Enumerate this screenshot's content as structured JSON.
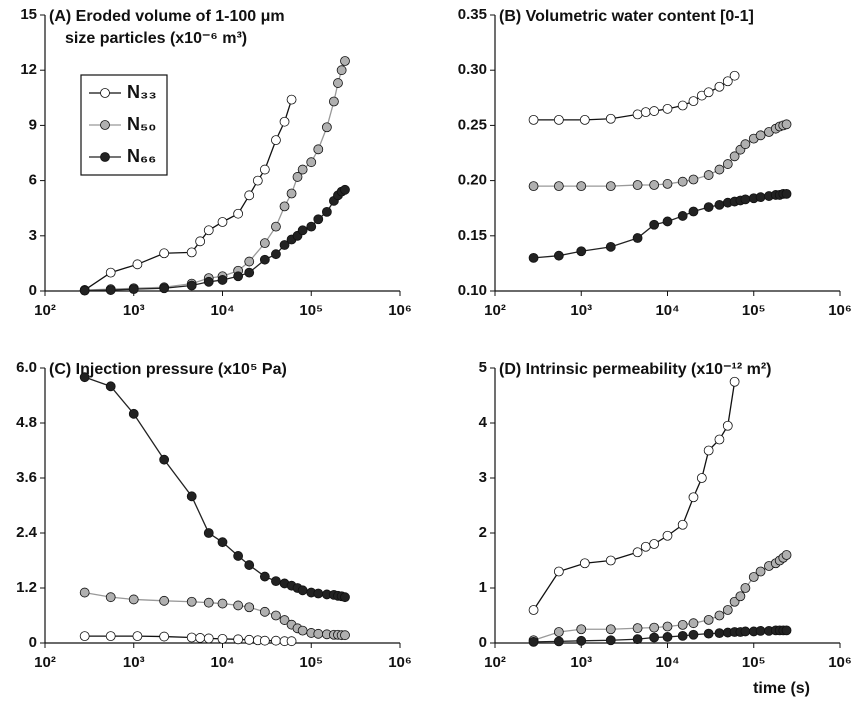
{
  "chart_data": [
    {
      "type": "line",
      "title": [
        "(A) Eroded volume of 1-100 μm",
        "size particles (x10⁻⁶ m³)"
      ],
      "log_x": true,
      "legend": "upper left",
      "xlim": [
        100,
        1000000
      ],
      "xticks": [
        {
          "value": 100,
          "label": "10²"
        },
        {
          "value": 1000,
          "label": "10³"
        },
        {
          "value": 10000,
          "label": "10⁴"
        },
        {
          "value": 100000,
          "label": "10⁵"
        },
        {
          "value": 1000000,
          "label": "10⁶"
        }
      ],
      "ylim": [
        0,
        15
      ],
      "yticks": [
        0,
        3,
        6,
        9,
        12,
        15
      ],
      "series": [
        {
          "name": "N₃₃",
          "color": "#ffffff",
          "line_color": "#111111",
          "x": [
            280,
            550,
            1100,
            2200,
            4500,
            5600,
            7000,
            10000,
            15000,
            20000,
            25000,
            30000,
            40000,
            50000,
            60000
          ],
          "values": [
            0.05,
            1.0,
            1.45,
            2.05,
            2.1,
            2.7,
            3.3,
            3.75,
            4.2,
            5.2,
            6.0,
            6.6,
            8.2,
            9.2,
            10.4
          ]
        },
        {
          "name": "N₅₀",
          "color": "#b0b0b0",
          "line_color": "#999999",
          "x": [
            280,
            550,
            1000,
            2200,
            4500,
            7000,
            10000,
            15000,
            20000,
            30000,
            40000,
            50000,
            60000,
            70000,
            80000,
            100000,
            120000,
            150000,
            180000,
            200000,
            220000,
            240000
          ],
          "values": [
            0.05,
            0.1,
            0.15,
            0.2,
            0.4,
            0.7,
            0.8,
            1.1,
            1.6,
            2.6,
            3.5,
            4.6,
            5.3,
            6.2,
            6.6,
            7.0,
            7.7,
            8.9,
            10.3,
            11.3,
            12.0,
            12.5
          ]
        },
        {
          "name": "N₆₆",
          "color": "#222222",
          "line_color": "#222222",
          "x": [
            280,
            550,
            1000,
            2200,
            4500,
            7000,
            10000,
            15000,
            20000,
            30000,
            40000,
            50000,
            60000,
            70000,
            80000,
            100000,
            120000,
            150000,
            180000,
            200000,
            220000,
            240000
          ],
          "values": [
            0.02,
            0.05,
            0.1,
            0.15,
            0.3,
            0.5,
            0.6,
            0.8,
            1.0,
            1.7,
            2.0,
            2.5,
            2.8,
            3.0,
            3.3,
            3.5,
            3.9,
            4.3,
            4.9,
            5.2,
            5.4,
            5.5
          ]
        }
      ]
    },
    {
      "type": "line",
      "title": [
        "(B) Volumetric water content [0-1]"
      ],
      "log_x": true,
      "xlim": [
        100,
        1000000
      ],
      "xticks": [
        {
          "value": 100,
          "label": "10²"
        },
        {
          "value": 1000,
          "label": "10³"
        },
        {
          "value": 10000,
          "label": "10⁴"
        },
        {
          "value": 100000,
          "label": "10⁵"
        },
        {
          "value": 1000000,
          "label": "10⁶"
        }
      ],
      "ylim": [
        0.1,
        0.35
      ],
      "yticks": [
        {
          "value": 0.1,
          "label": "0.10"
        },
        0.15,
        {
          "value": 0.2,
          "label": "0.20"
        },
        0.25,
        {
          "value": 0.3,
          "label": "0.30"
        },
        0.35
      ],
      "series": [
        {
          "name": "N₃₃",
          "color": "#ffffff",
          "line_color": "#111111",
          "x": [
            280,
            550,
            1100,
            2200,
            4500,
            5600,
            7000,
            10000,
            15000,
            20000,
            25000,
            30000,
            40000,
            50000,
            60000
          ],
          "values": [
            0.255,
            0.255,
            0.255,
            0.256,
            0.26,
            0.262,
            0.263,
            0.265,
            0.268,
            0.272,
            0.277,
            0.28,
            0.285,
            0.29,
            0.295
          ]
        },
        {
          "name": "N₅₀",
          "color": "#b0b0b0",
          "line_color": "#999999",
          "x": [
            280,
            550,
            1000,
            2200,
            4500,
            7000,
            10000,
            15000,
            20000,
            30000,
            40000,
            50000,
            60000,
            70000,
            80000,
            100000,
            120000,
            150000,
            180000,
            200000,
            220000,
            240000
          ],
          "values": [
            0.195,
            0.195,
            0.195,
            0.195,
            0.196,
            0.196,
            0.197,
            0.199,
            0.201,
            0.205,
            0.21,
            0.215,
            0.222,
            0.228,
            0.233,
            0.238,
            0.241,
            0.244,
            0.247,
            0.249,
            0.25,
            0.251
          ]
        },
        {
          "name": "N₆₆",
          "color": "#222222",
          "line_color": "#222222",
          "x": [
            280,
            550,
            1000,
            2200,
            4500,
            7000,
            10000,
            15000,
            20000,
            30000,
            40000,
            50000,
            60000,
            70000,
            80000,
            100000,
            120000,
            150000,
            180000,
            200000,
            220000,
            240000
          ],
          "values": [
            0.13,
            0.132,
            0.136,
            0.14,
            0.148,
            0.16,
            0.163,
            0.168,
            0.172,
            0.176,
            0.178,
            0.18,
            0.181,
            0.182,
            0.183,
            0.184,
            0.185,
            0.186,
            0.187,
            0.187,
            0.188,
            0.188
          ]
        }
      ]
    },
    {
      "type": "line",
      "title": [
        "(C) Injection pressure (x10⁵ Pa)"
      ],
      "log_x": true,
      "xlim": [
        100,
        1000000
      ],
      "xticks": [
        {
          "value": 100,
          "label": "10²"
        },
        {
          "value": 1000,
          "label": "10³"
        },
        {
          "value": 10000,
          "label": "10⁴"
        },
        {
          "value": 100000,
          "label": "10⁵"
        },
        {
          "value": 1000000,
          "label": "10⁶"
        }
      ],
      "ylim": [
        0,
        6
      ],
      "yticks": [
        0,
        1.2,
        2.4,
        3.6,
        4.8,
        {
          "value": 6,
          "label": "6.0"
        }
      ],
      "series": [
        {
          "name": "N₃₃",
          "color": "#ffffff",
          "line_color": "#111111",
          "x": [
            280,
            550,
            1100,
            2200,
            4500,
            5600,
            7000,
            10000,
            15000,
            20000,
            25000,
            30000,
            40000,
            50000,
            60000
          ],
          "values": [
            0.15,
            0.15,
            0.15,
            0.14,
            0.12,
            0.11,
            0.1,
            0.09,
            0.08,
            0.07,
            0.06,
            0.05,
            0.05,
            0.04,
            0.04
          ]
        },
        {
          "name": "N₅₀",
          "color": "#b0b0b0",
          "line_color": "#999999",
          "x": [
            280,
            550,
            1000,
            2200,
            4500,
            7000,
            10000,
            15000,
            20000,
            30000,
            40000,
            50000,
            60000,
            70000,
            80000,
            100000,
            120000,
            150000,
            180000,
            200000,
            220000,
            240000
          ],
          "values": [
            1.1,
            1.0,
            0.95,
            0.92,
            0.9,
            0.88,
            0.86,
            0.82,
            0.78,
            0.68,
            0.6,
            0.5,
            0.4,
            0.32,
            0.27,
            0.22,
            0.2,
            0.19,
            0.18,
            0.18,
            0.17,
            0.17
          ]
        },
        {
          "name": "N₆₆",
          "color": "#222222",
          "line_color": "#222222",
          "x": [
            280,
            550,
            1000,
            2200,
            4500,
            7000,
            10000,
            15000,
            20000,
            30000,
            40000,
            50000,
            60000,
            70000,
            80000,
            100000,
            120000,
            150000,
            180000,
            200000,
            220000,
            240000
          ],
          "values": [
            5.8,
            5.6,
            5.0,
            4.0,
            3.2,
            2.4,
            2.2,
            1.9,
            1.7,
            1.45,
            1.35,
            1.3,
            1.25,
            1.2,
            1.15,
            1.1,
            1.08,
            1.06,
            1.05,
            1.03,
            1.02,
            1.0
          ]
        }
      ]
    },
    {
      "type": "line",
      "title": [
        "(D) Intrinsic permeability (x10⁻¹² m²)"
      ],
      "x_label": "time (s)",
      "log_x": true,
      "xlim": [
        100,
        1000000
      ],
      "xticks": [
        {
          "value": 100,
          "label": "10²"
        },
        {
          "value": 1000,
          "label": "10³"
        },
        {
          "value": 10000,
          "label": "10⁴"
        },
        {
          "value": 100000,
          "label": "10⁵"
        },
        {
          "value": 1000000,
          "label": "10⁶"
        }
      ],
      "ylim": [
        0,
        5
      ],
      "yticks": [
        0,
        1,
        2,
        3,
        4,
        5
      ],
      "series": [
        {
          "name": "N₃₃",
          "color": "#ffffff",
          "line_color": "#111111",
          "x": [
            280,
            550,
            1100,
            2200,
            4500,
            5600,
            7000,
            10000,
            15000,
            20000,
            25000,
            30000,
            40000,
            50000,
            60000
          ],
          "values": [
            0.6,
            1.3,
            1.45,
            1.5,
            1.65,
            1.75,
            1.8,
            1.95,
            2.15,
            2.65,
            3.0,
            3.5,
            3.7,
            3.95,
            4.75
          ]
        },
        {
          "name": "N₅₀",
          "color": "#b0b0b0",
          "line_color": "#999999",
          "x": [
            280,
            550,
            1000,
            2200,
            4500,
            7000,
            10000,
            15000,
            20000,
            30000,
            40000,
            50000,
            60000,
            70000,
            80000,
            100000,
            120000,
            150000,
            180000,
            200000,
            220000,
            240000
          ],
          "values": [
            0.05,
            0.2,
            0.25,
            0.25,
            0.27,
            0.28,
            0.3,
            0.33,
            0.36,
            0.42,
            0.5,
            0.6,
            0.75,
            0.85,
            1.0,
            1.2,
            1.3,
            1.4,
            1.45,
            1.5,
            1.55,
            1.6
          ]
        },
        {
          "name": "N₆₆",
          "color": "#222222",
          "line_color": "#222222",
          "x": [
            280,
            550,
            1000,
            2200,
            4500,
            7000,
            10000,
            15000,
            20000,
            30000,
            40000,
            50000,
            60000,
            70000,
            80000,
            100000,
            120000,
            150000,
            180000,
            200000,
            220000,
            240000
          ],
          "values": [
            0.02,
            0.03,
            0.04,
            0.05,
            0.07,
            0.1,
            0.11,
            0.13,
            0.15,
            0.17,
            0.18,
            0.19,
            0.2,
            0.2,
            0.21,
            0.21,
            0.22,
            0.22,
            0.23,
            0.23,
            0.23,
            0.23
          ]
        }
      ]
    }
  ]
}
